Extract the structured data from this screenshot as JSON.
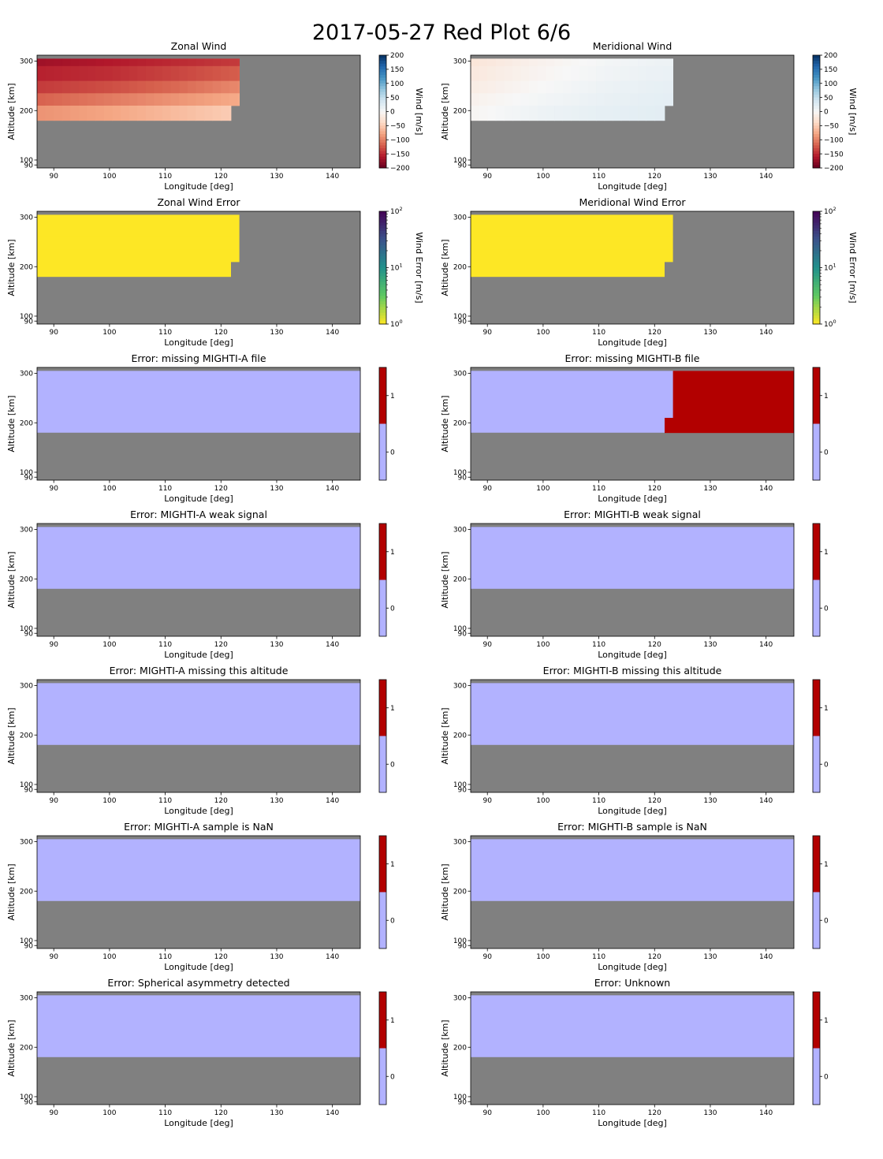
{
  "figure": {
    "title": "2017-05-27 Red Plot 6/6"
  },
  "colors": {
    "missing": "#808080",
    "flag_zero": "#b2b2ff",
    "flag_one": "#b20000",
    "wind_error": "#fde725"
  },
  "chart_data": [
    {
      "type": "heatmap",
      "title": "Zonal Wind",
      "xlabel": "Longitude [deg]",
      "ylabel": "Altitude [km]",
      "xlim": [
        87,
        145
      ],
      "ylim": [
        84,
        312
      ],
      "xticks": [
        "90",
        "100",
        "110",
        "120",
        "130",
        "140"
      ],
      "yticks": [
        "90",
        "100",
        "200",
        "300"
      ],
      "colorbar": {
        "label": "Wind [m/s]",
        "ticks": [
          "200",
          "150",
          "100",
          "50",
          "0",
          "−50",
          "−100",
          "−150",
          "−200"
        ],
        "range": [
          -200,
          200
        ],
        "cmap": "RdBu"
      },
      "data_lon": [
        87,
        88.5,
        90,
        91.5,
        93,
        94.5,
        96,
        97.5,
        99,
        100.5,
        102,
        103.5,
        105,
        106.5,
        108,
        109.5,
        111,
        112.5,
        114,
        115.5,
        117,
        118.5,
        120,
        121.5
      ],
      "data_lon_end": [
        123.3,
        123.3,
        123.3,
        123.3,
        121.8
      ],
      "altitudes": [
        [
          290,
          305
        ],
        [
          260,
          290
        ],
        [
          235,
          260
        ],
        [
          210,
          235
        ],
        [
          180,
          210
        ]
      ],
      "values": [
        [
          -170,
          -160,
          -150,
          -140
        ],
        [
          -155,
          -148,
          -135,
          -120
        ],
        [
          -140,
          -130,
          -115,
          -95
        ],
        [
          -118,
          -105,
          -90,
          -75
        ],
        [
          -90,
          -80,
          -65,
          -50
        ]
      ]
    },
    {
      "type": "heatmap",
      "title": "Meridional Wind",
      "xlabel": "Longitude [deg]",
      "ylabel": "Altitude [km]",
      "xlim": [
        87,
        145
      ],
      "ylim": [
        84,
        312
      ],
      "xticks": [
        "90",
        "100",
        "110",
        "120",
        "130",
        "140"
      ],
      "yticks": [
        "90",
        "100",
        "200",
        "300"
      ],
      "colorbar": {
        "label": "Wind [m/s]",
        "ticks": [
          "200",
          "150",
          "100",
          "50",
          "0",
          "−50",
          "−100",
          "−150",
          "−200"
        ],
        "range": [
          -200,
          200
        ],
        "cmap": "RdBu"
      },
      "data_lon_end": [
        123.3,
        123.3,
        123.3,
        123.3,
        121.8
      ],
      "altitudes": [
        [
          290,
          305
        ],
        [
          260,
          290
        ],
        [
          235,
          260
        ],
        [
          210,
          235
        ],
        [
          180,
          210
        ]
      ],
      "values": [
        [
          -25,
          -8,
          5,
          12
        ],
        [
          -20,
          -5,
          8,
          15
        ],
        [
          -15,
          0,
          12,
          18
        ],
        [
          -8,
          5,
          15,
          20
        ],
        [
          -3,
          10,
          18,
          22
        ]
      ]
    },
    {
      "type": "heatmap",
      "title": "Zonal Wind Error",
      "xlabel": "Longitude [deg]",
      "ylabel": "Altitude [km]",
      "xlim": [
        87,
        145
      ],
      "ylim": [
        84,
        312
      ],
      "xticks": [
        "90",
        "100",
        "110",
        "120",
        "130",
        "140"
      ],
      "yticks": [
        "90",
        "100",
        "200",
        "300"
      ],
      "colorbar": {
        "label": "Wind Error [m/s]",
        "ticks": [
          "10^2",
          "10^1",
          "10^0"
        ],
        "range": [
          1,
          100
        ],
        "cmap": "viridis_r",
        "scale": "log"
      },
      "data_lon_end": [
        123.3,
        123.3,
        123.3,
        123.3,
        121.8
      ],
      "altitudes": [
        [
          290,
          305
        ],
        [
          260,
          290
        ],
        [
          235,
          260
        ],
        [
          210,
          235
        ],
        [
          180,
          210
        ]
      ],
      "value": 1
    },
    {
      "type": "heatmap",
      "title": "Meridional Wind Error",
      "xlabel": "Longitude [deg]",
      "ylabel": "Altitude [km]",
      "xlim": [
        87,
        145
      ],
      "ylim": [
        84,
        312
      ],
      "xticks": [
        "90",
        "100",
        "110",
        "120",
        "130",
        "140"
      ],
      "yticks": [
        "90",
        "100",
        "200",
        "300"
      ],
      "colorbar": {
        "label": "Wind Error [m/s]",
        "ticks": [
          "10^2",
          "10^1",
          "10^0"
        ],
        "range": [
          1,
          100
        ],
        "cmap": "viridis_r",
        "scale": "log"
      },
      "data_lon_end": [
        123.3,
        123.3,
        123.3,
        123.3,
        121.8
      ],
      "altitudes": [
        [
          290,
          305
        ],
        [
          260,
          290
        ],
        [
          235,
          260
        ],
        [
          210,
          235
        ],
        [
          180,
          210
        ]
      ],
      "value": 1
    },
    {
      "type": "heatmap",
      "title": "Error: missing MIGHTI-A file",
      "xlabel": "Longitude [deg]",
      "ylabel": "Altitude [km]",
      "xlim": [
        87,
        145
      ],
      "ylim": [
        84,
        312
      ],
      "xticks": [
        "90",
        "100",
        "110",
        "120",
        "130",
        "140"
      ],
      "yticks": [
        "90",
        "100",
        "200",
        "300"
      ],
      "colorbar": {
        "ticks": [
          "1",
          "0"
        ],
        "range": [
          0,
          1
        ]
      },
      "flag_one_regions": []
    },
    {
      "type": "heatmap",
      "title": "Error: missing MIGHTI-B file",
      "xlabel": "Longitude [deg]",
      "ylabel": "Altitude [km]",
      "xlim": [
        87,
        145
      ],
      "ylim": [
        84,
        312
      ],
      "xticks": [
        "90",
        "100",
        "110",
        "120",
        "130",
        "140"
      ],
      "yticks": [
        "90",
        "100",
        "200",
        "300"
      ],
      "colorbar": {
        "ticks": [
          "1",
          "0"
        ],
        "range": [
          0,
          1
        ]
      },
      "flag_one_regions": [
        {
          "lon": [
            123.3,
            145
          ],
          "alt": [
            210,
            305
          ]
        },
        {
          "lon": [
            121.8,
            145
          ],
          "alt": [
            180,
            210
          ]
        }
      ]
    },
    {
      "type": "heatmap",
      "title": "Error: MIGHTI-A weak signal",
      "xlabel": "Longitude [deg]",
      "ylabel": "Altitude [km]",
      "xlim": [
        87,
        145
      ],
      "ylim": [
        84,
        312
      ],
      "xticks": [
        "90",
        "100",
        "110",
        "120",
        "130",
        "140"
      ],
      "yticks": [
        "90",
        "100",
        "200",
        "300"
      ],
      "colorbar": {
        "ticks": [
          "1",
          "0"
        ],
        "range": [
          0,
          1
        ]
      },
      "flag_one_regions": []
    },
    {
      "type": "heatmap",
      "title": "Error: MIGHTI-B weak signal",
      "xlabel": "Longitude [deg]",
      "ylabel": "Altitude [km]",
      "xlim": [
        87,
        145
      ],
      "ylim": [
        84,
        312
      ],
      "xticks": [
        "90",
        "100",
        "110",
        "120",
        "130",
        "140"
      ],
      "yticks": [
        "90",
        "100",
        "200",
        "300"
      ],
      "colorbar": {
        "ticks": [
          "1",
          "0"
        ],
        "range": [
          0,
          1
        ]
      },
      "flag_one_regions": []
    },
    {
      "type": "heatmap",
      "title": "Error: MIGHTI-A missing this altitude",
      "xlabel": "Longitude [deg]",
      "ylabel": "Altitude [km]",
      "xlim": [
        87,
        145
      ],
      "ylim": [
        84,
        312
      ],
      "xticks": [
        "90",
        "100",
        "110",
        "120",
        "130",
        "140"
      ],
      "yticks": [
        "90",
        "100",
        "200",
        "300"
      ],
      "colorbar": {
        "ticks": [
          "1",
          "0"
        ],
        "range": [
          0,
          1
        ]
      },
      "flag_one_regions": []
    },
    {
      "type": "heatmap",
      "title": "Error: MIGHTI-B missing this altitude",
      "xlabel": "Longitude [deg]",
      "ylabel": "Altitude [km]",
      "xlim": [
        87,
        145
      ],
      "ylim": [
        84,
        312
      ],
      "xticks": [
        "90",
        "100",
        "110",
        "120",
        "130",
        "140"
      ],
      "yticks": [
        "90",
        "100",
        "200",
        "300"
      ],
      "colorbar": {
        "ticks": [
          "1",
          "0"
        ],
        "range": [
          0,
          1
        ]
      },
      "flag_one_regions": []
    },
    {
      "type": "heatmap",
      "title": "Error: MIGHTI-A sample is NaN",
      "xlabel": "Longitude [deg]",
      "ylabel": "Altitude [km]",
      "xlim": [
        87,
        145
      ],
      "ylim": [
        84,
        312
      ],
      "xticks": [
        "90",
        "100",
        "110",
        "120",
        "130",
        "140"
      ],
      "yticks": [
        "90",
        "100",
        "200",
        "300"
      ],
      "colorbar": {
        "ticks": [
          "1",
          "0"
        ],
        "range": [
          0,
          1
        ]
      },
      "flag_one_regions": []
    },
    {
      "type": "heatmap",
      "title": "Error: MIGHTI-B sample is NaN",
      "xlabel": "Longitude [deg]",
      "ylabel": "Altitude [km]",
      "xlim": [
        87,
        145
      ],
      "ylim": [
        84,
        312
      ],
      "xticks": [
        "90",
        "100",
        "110",
        "120",
        "130",
        "140"
      ],
      "yticks": [
        "90",
        "100",
        "200",
        "300"
      ],
      "colorbar": {
        "ticks": [
          "1",
          "0"
        ],
        "range": [
          0,
          1
        ]
      },
      "flag_one_regions": []
    },
    {
      "type": "heatmap",
      "title": "Error: Spherical asymmetry detected",
      "xlabel": "Longitude [deg]",
      "ylabel": "Altitude [km]",
      "xlim": [
        87,
        145
      ],
      "ylim": [
        84,
        312
      ],
      "xticks": [
        "90",
        "100",
        "110",
        "120",
        "130",
        "140"
      ],
      "yticks": [
        "90",
        "100",
        "200",
        "300"
      ],
      "colorbar": {
        "ticks": [
          "1",
          "0"
        ],
        "range": [
          0,
          1
        ]
      },
      "flag_one_regions": []
    },
    {
      "type": "heatmap",
      "title": "Error: Unknown",
      "xlabel": "Longitude [deg]",
      "ylabel": "Altitude [km]",
      "xlim": [
        87,
        145
      ],
      "ylim": [
        84,
        312
      ],
      "xticks": [
        "90",
        "100",
        "110",
        "120",
        "130",
        "140"
      ],
      "yticks": [
        "90",
        "100",
        "200",
        "300"
      ],
      "colorbar": {
        "ticks": [
          "1",
          "0"
        ],
        "range": [
          0,
          1
        ]
      },
      "flag_one_regions": []
    }
  ]
}
